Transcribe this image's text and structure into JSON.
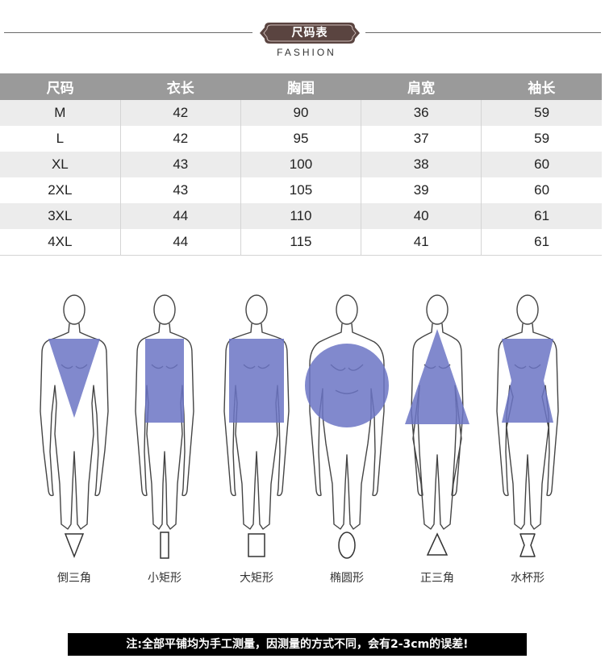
{
  "header": {
    "badge": "尺码表",
    "subtitle": "FASHION"
  },
  "size_table": {
    "columns": [
      "尺码",
      "衣长",
      "胸围",
      "肩宽",
      "袖长"
    ],
    "rows": [
      [
        "M",
        "42",
        "90",
        "36",
        "59"
      ],
      [
        "L",
        "42",
        "95",
        "37",
        "59"
      ],
      [
        "XL",
        "43",
        "100",
        "38",
        "60"
      ],
      [
        "2XL",
        "43",
        "105",
        "39",
        "60"
      ],
      [
        "3XL",
        "44",
        "110",
        "40",
        "61"
      ],
      [
        "4XL",
        "44",
        "115",
        "41",
        "61"
      ]
    ]
  },
  "body_shapes": [
    {
      "label": "倒三角",
      "icon": "inverted-triangle-icon"
    },
    {
      "label": "小矩形",
      "icon": "narrow-rectangle-icon"
    },
    {
      "label": "大矩形",
      "icon": "wide-rectangle-icon"
    },
    {
      "label": "椭圆形",
      "icon": "oval-icon"
    },
    {
      "label": "正三角",
      "icon": "triangle-icon"
    },
    {
      "label": "水杯形",
      "icon": "hourglass-icon"
    }
  ],
  "footer_note": "注:全部平铺均为手工测量，因测量的方式不同，会有2-3cm的误差!",
  "colors": {
    "badge": "#5a4440",
    "table_header": "#9a9a9a",
    "shape_fill": "#6b74c4",
    "footer_bg": "#000000"
  }
}
